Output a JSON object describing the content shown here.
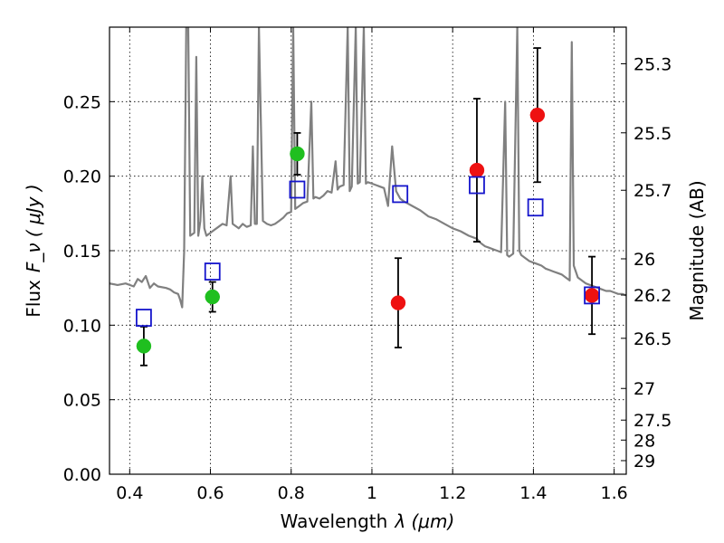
{
  "chart_data": {
    "type": "scatter",
    "xlabel_prefix": "Wavelength",
    "xlabel_math": "λ (μm)",
    "ylabel_prefix": "Flux",
    "ylabel_math": "F_ν ( μJy )",
    "ylabel_right": "Magnitude (AB)",
    "xlim": [
      0.35,
      1.63
    ],
    "ylim": [
      0.0,
      0.3
    ],
    "grid": true,
    "xticks": [
      0.4,
      0.6,
      0.8,
      1.0,
      1.2,
      1.4,
      1.6
    ],
    "xtick_labels": [
      "0.4",
      "0.6",
      "0.8",
      "1",
      "1.2",
      "1.4",
      "1.6"
    ],
    "yticks": [
      0.0,
      0.05,
      0.1,
      0.15,
      0.2,
      0.25
    ],
    "ytick_labels": [
      "0.00",
      "0.05",
      "0.10",
      "0.15",
      "0.20",
      "0.25"
    ],
    "right_ticks": [
      {
        "label": "25.3",
        "mag": 25.3
      },
      {
        "label": "25.5",
        "mag": 25.5
      },
      {
        "label": "25.7",
        "mag": 25.7
      },
      {
        "label": "26",
        "mag": 26.0
      },
      {
        "label": "26.2",
        "mag": 26.2
      },
      {
        "label": "26.5",
        "mag": 26.5
      },
      {
        "label": "27",
        "mag": 27.0
      },
      {
        "label": "27.5",
        "mag": 27.5
      },
      {
        "label": "28",
        "mag": 28.0
      },
      {
        "label": "29",
        "mag": 29.0
      }
    ],
    "colors": {
      "model": "#808080",
      "green": "#1fbf1f",
      "red": "#ee1111",
      "blue": "#1515cc"
    },
    "series": [
      {
        "style": "line-gray",
        "points": [
          [
            0.35,
            0.128
          ],
          [
            0.37,
            0.127
          ],
          [
            0.39,
            0.128
          ],
          [
            0.41,
            0.126
          ],
          [
            0.42,
            0.131
          ],
          [
            0.43,
            0.129
          ],
          [
            0.44,
            0.133
          ],
          [
            0.45,
            0.125
          ],
          [
            0.46,
            0.128
          ],
          [
            0.47,
            0.126
          ],
          [
            0.49,
            0.125
          ],
          [
            0.5,
            0.124
          ],
          [
            0.51,
            0.122
          ],
          [
            0.52,
            0.121
          ],
          [
            0.525,
            0.117
          ],
          [
            0.53,
            0.112
          ],
          [
            0.535,
            0.15
          ],
          [
            0.54,
            0.3
          ],
          [
            0.545,
            0.3
          ],
          [
            0.55,
            0.16
          ],
          [
            0.56,
            0.162
          ],
          [
            0.565,
            0.28
          ],
          [
            0.57,
            0.16
          ],
          [
            0.575,
            0.17
          ],
          [
            0.58,
            0.2
          ],
          [
            0.585,
            0.165
          ],
          [
            0.59,
            0.16
          ],
          [
            0.6,
            0.162
          ],
          [
            0.61,
            0.164
          ],
          [
            0.62,
            0.166
          ],
          [
            0.63,
            0.168
          ],
          [
            0.64,
            0.167
          ],
          [
            0.65,
            0.2
          ],
          [
            0.655,
            0.168
          ],
          [
            0.66,
            0.167
          ],
          [
            0.67,
            0.165
          ],
          [
            0.68,
            0.168
          ],
          [
            0.69,
            0.166
          ],
          [
            0.7,
            0.167
          ],
          [
            0.705,
            0.22
          ],
          [
            0.71,
            0.168
          ],
          [
            0.715,
            0.168
          ],
          [
            0.72,
            0.3
          ],
          [
            0.73,
            0.17
          ],
          [
            0.74,
            0.168
          ],
          [
            0.75,
            0.167
          ],
          [
            0.76,
            0.168
          ],
          [
            0.77,
            0.17
          ],
          [
            0.78,
            0.172
          ],
          [
            0.79,
            0.175
          ],
          [
            0.8,
            0.176
          ],
          [
            0.805,
            0.3
          ],
          [
            0.81,
            0.178
          ],
          [
            0.82,
            0.18
          ],
          [
            0.83,
            0.182
          ],
          [
            0.84,
            0.183
          ],
          [
            0.85,
            0.25
          ],
          [
            0.855,
            0.185
          ],
          [
            0.86,
            0.186
          ],
          [
            0.87,
            0.185
          ],
          [
            0.88,
            0.187
          ],
          [
            0.89,
            0.19
          ],
          [
            0.9,
            0.189
          ],
          [
            0.91,
            0.21
          ],
          [
            0.915,
            0.191
          ],
          [
            0.92,
            0.193
          ],
          [
            0.93,
            0.194
          ],
          [
            0.94,
            0.3
          ],
          [
            0.945,
            0.19
          ],
          [
            0.95,
            0.193
          ],
          [
            0.96,
            0.3
          ],
          [
            0.965,
            0.195
          ],
          [
            0.97,
            0.196
          ],
          [
            0.98,
            0.3
          ],
          [
            0.985,
            0.195
          ],
          [
            0.99,
            0.196
          ],
          [
            1.0,
            0.195
          ],
          [
            1.01,
            0.194
          ],
          [
            1.02,
            0.193
          ],
          [
            1.03,
            0.192
          ],
          [
            1.04,
            0.18
          ],
          [
            1.05,
            0.22
          ],
          [
            1.06,
            0.19
          ],
          [
            1.07,
            0.185
          ],
          [
            1.08,
            0.183
          ],
          [
            1.1,
            0.18
          ],
          [
            1.12,
            0.177
          ],
          [
            1.14,
            0.173
          ],
          [
            1.16,
            0.171
          ],
          [
            1.18,
            0.168
          ],
          [
            1.2,
            0.165
          ],
          [
            1.22,
            0.163
          ],
          [
            1.24,
            0.16
          ],
          [
            1.26,
            0.158
          ],
          [
            1.27,
            0.155
          ],
          [
            1.28,
            0.153
          ],
          [
            1.29,
            0.152
          ],
          [
            1.3,
            0.151
          ],
          [
            1.31,
            0.15
          ],
          [
            1.32,
            0.149
          ],
          [
            1.33,
            0.25
          ],
          [
            1.335,
            0.147
          ],
          [
            1.34,
            0.146
          ],
          [
            1.35,
            0.148
          ],
          [
            1.36,
            0.3
          ],
          [
            1.365,
            0.15
          ],
          [
            1.37,
            0.147
          ],
          [
            1.38,
            0.145
          ],
          [
            1.39,
            0.143
          ],
          [
            1.4,
            0.142
          ],
          [
            1.41,
            0.141
          ],
          [
            1.42,
            0.14
          ],
          [
            1.43,
            0.138
          ],
          [
            1.44,
            0.137
          ],
          [
            1.45,
            0.136
          ],
          [
            1.46,
            0.135
          ],
          [
            1.47,
            0.134
          ],
          [
            1.48,
            0.132
          ],
          [
            1.49,
            0.13
          ],
          [
            1.495,
            0.29
          ],
          [
            1.5,
            0.14
          ],
          [
            1.51,
            0.132
          ],
          [
            1.52,
            0.13
          ],
          [
            1.53,
            0.128
          ],
          [
            1.54,
            0.127
          ],
          [
            1.55,
            0.126
          ],
          [
            1.56,
            0.125
          ],
          [
            1.57,
            0.124
          ],
          [
            1.58,
            0.123
          ],
          [
            1.59,
            0.123
          ],
          [
            1.6,
            0.122
          ],
          [
            1.61,
            0.121
          ],
          [
            1.62,
            0.121
          ],
          [
            1.63,
            0.12
          ]
        ]
      },
      {
        "style": "circle-green",
        "points": [
          {
            "x": 0.435,
            "y": 0.086,
            "err": 0.013
          },
          {
            "x": 0.605,
            "y": 0.119,
            "err": 0.01
          },
          {
            "x": 0.815,
            "y": 0.215,
            "err": 0.014
          }
        ]
      },
      {
        "style": "circle-red",
        "points": [
          {
            "x": 1.065,
            "y": 0.115,
            "err": 0.03
          },
          {
            "x": 1.26,
            "y": 0.204,
            "err": 0.048
          },
          {
            "x": 1.41,
            "y": 0.241,
            "err": 0.045
          },
          {
            "x": 1.545,
            "y": 0.12,
            "err": 0.026
          }
        ]
      },
      {
        "style": "square-blue",
        "points": [
          {
            "x": 0.435,
            "y": 0.105
          },
          {
            "x": 0.605,
            "y": 0.136
          },
          {
            "x": 0.815,
            "y": 0.191
          },
          {
            "x": 1.07,
            "y": 0.188
          },
          {
            "x": 1.26,
            "y": 0.194
          },
          {
            "x": 1.405,
            "y": 0.179
          },
          {
            "x": 1.545,
            "y": 0.12
          }
        ]
      }
    ]
  }
}
